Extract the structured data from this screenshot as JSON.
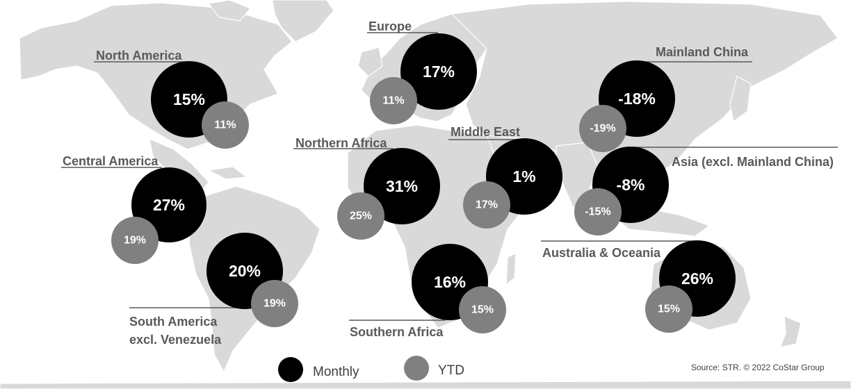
{
  "chart_data": {
    "type": "bubble-map",
    "series": [
      {
        "name": "Monthly",
        "color": "#000000"
      },
      {
        "name": "YTD",
        "color": "#808080"
      }
    ],
    "regions": [
      {
        "name": "North America",
        "monthly": "15%",
        "ytd": "11%"
      },
      {
        "name": "Central America",
        "monthly": "27%",
        "ytd": "19%"
      },
      {
        "name": "South America",
        "name_line2": "excl. Venezuela",
        "monthly": "20%",
        "ytd": "19%"
      },
      {
        "name": "Europe",
        "monthly": "17%",
        "ytd": "11%"
      },
      {
        "name": "Northern Africa",
        "monthly": "31%",
        "ytd": "25%"
      },
      {
        "name": "Southern Africa",
        "monthly": "16%",
        "ytd": "15%"
      },
      {
        "name": "Middle East",
        "monthly": "1%",
        "ytd": "17%"
      },
      {
        "name": "Mainland China",
        "monthly": "-18%",
        "ytd": "-19%"
      },
      {
        "name": "Asia (excl. Mainland China)",
        "monthly": "-8%",
        "ytd": "-15%"
      },
      {
        "name": "Australia & Oceania",
        "monthly": "26%",
        "ytd": "15%"
      }
    ]
  },
  "legend": {
    "monthly_label": "Monthly",
    "ytd_label": "YTD"
  },
  "source": "Source: STR. © 2022 CoStar Group"
}
